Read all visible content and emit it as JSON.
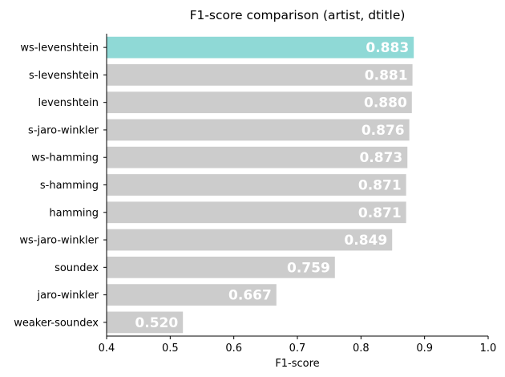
{
  "chart_data": {
    "type": "bar",
    "orientation": "horizontal",
    "title": "F1-score comparison (artist, dtitle)",
    "xlabel": "F1-score",
    "ylabel": "",
    "xlim": [
      0.4,
      1.0
    ],
    "xticks": [
      "0.4",
      "0.5",
      "0.6",
      "0.7",
      "0.8",
      "0.9",
      "1.0"
    ],
    "grid": false,
    "categories": [
      "ws-levenshtein",
      "s-levenshtein",
      "levenshtein",
      "s-jaro-winkler",
      "ws-hamming",
      "s-hamming",
      "hamming",
      "ws-jaro-winkler",
      "soundex",
      "jaro-winkler",
      "weaker-soundex"
    ],
    "values": [
      0.883,
      0.881,
      0.88,
      0.876,
      0.873,
      0.871,
      0.871,
      0.849,
      0.759,
      0.667,
      0.52
    ],
    "data_labels": [
      "0.883",
      "0.881",
      "0.880",
      "0.876",
      "0.873",
      "0.871",
      "0.871",
      "0.849",
      "0.759",
      "0.667",
      "0.520"
    ],
    "highlight_index": 0,
    "colors": {
      "highlight": "#8fd9d6",
      "default": "#cccccc",
      "label": "#ffffff",
      "axis": "#000000"
    }
  }
}
